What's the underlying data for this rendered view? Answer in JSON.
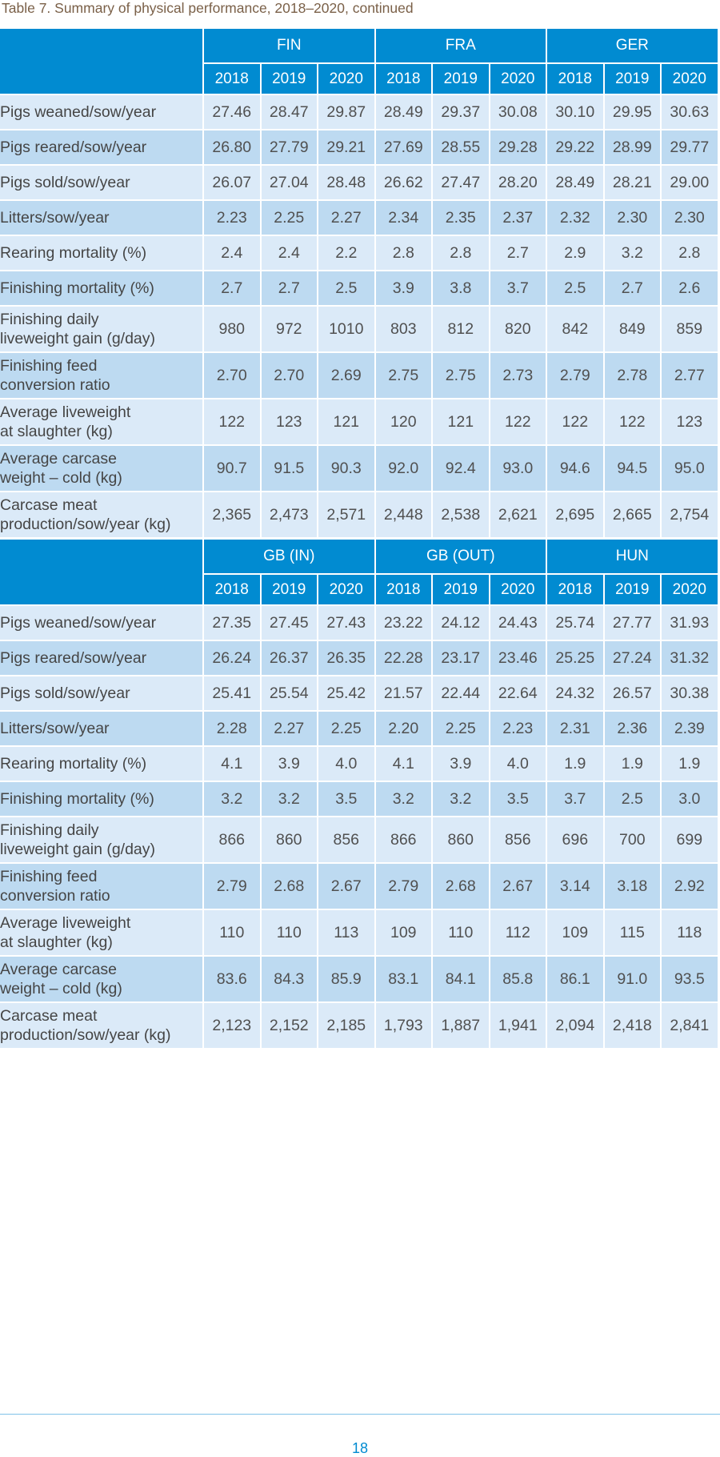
{
  "caption": "Table 7. Summary of physical performance, 2018–2020, continued",
  "page_number": "18",
  "colors": {
    "header_blue": "#018bd1",
    "row_light": "#dbeaf8",
    "row_dark": "#bddaf1",
    "caption_brown": "#7a6048"
  },
  "tables": [
    {
      "countries": [
        "FIN",
        "FRA",
        "GER"
      ],
      "years": [
        "2018",
        "2019",
        "2020",
        "2018",
        "2019",
        "2020",
        "2018",
        "2019",
        "2020"
      ],
      "rows": [
        {
          "label": "Pigs weaned/sow/year",
          "values": [
            "27.46",
            "28.47",
            "29.87",
            "28.49",
            "29.37",
            "30.08",
            "30.10",
            "29.95",
            "30.63"
          ]
        },
        {
          "label": "Pigs reared/sow/year",
          "values": [
            "26.80",
            "27.79",
            "29.21",
            "27.69",
            "28.55",
            "29.28",
            "29.22",
            "28.99",
            "29.77"
          ]
        },
        {
          "label": "Pigs sold/sow/year",
          "values": [
            "26.07",
            "27.04",
            "28.48",
            "26.62",
            "27.47",
            "28.20",
            "28.49",
            "28.21",
            "29.00"
          ]
        },
        {
          "label": "Litters/sow/year",
          "values": [
            "2.23",
            "2.25",
            "2.27",
            "2.34",
            "2.35",
            "2.37",
            "2.32",
            "2.30",
            "2.30"
          ]
        },
        {
          "label": "Rearing mortality (%)",
          "values": [
            "2.4",
            "2.4",
            "2.2",
            "2.8",
            "2.8",
            "2.7",
            "2.9",
            "3.2",
            "2.8"
          ]
        },
        {
          "label": "Finishing mortality (%)",
          "values": [
            "2.7",
            "2.7",
            "2.5",
            "3.9",
            "3.8",
            "3.7",
            "2.5",
            "2.7",
            "2.6"
          ]
        },
        {
          "label": "Finishing daily",
          "label2": "liveweight gain (g/day)",
          "values": [
            "980",
            "972",
            "1010",
            "803",
            "812",
            "820",
            "842",
            "849",
            "859"
          ]
        },
        {
          "label": "Finishing feed",
          "label2": "conversion ratio",
          "values": [
            "2.70",
            "2.70",
            "2.69",
            "2.75",
            "2.75",
            "2.73",
            "2.79",
            "2.78",
            "2.77"
          ]
        },
        {
          "label": "Average liveweight",
          "label2": "at slaughter (kg)",
          "values": [
            "122",
            "123",
            "121",
            "120",
            "121",
            "122",
            "122",
            "122",
            "123"
          ]
        },
        {
          "label": "Average carcase",
          "label2": "weight – cold (kg)",
          "values": [
            "90.7",
            "91.5",
            "90.3",
            "92.0",
            "92.4",
            "93.0",
            "94.6",
            "94.5",
            "95.0"
          ]
        },
        {
          "label": "Carcase meat",
          "label2": "production/sow/year (kg)",
          "values": [
            "2,365",
            "2,473",
            "2,571",
            "2,448",
            "2,538",
            "2,621",
            "2,695",
            "2,665",
            "2,754"
          ]
        }
      ]
    },
    {
      "countries": [
        "GB (IN)",
        "GB (OUT)",
        "HUN"
      ],
      "years": [
        "2018",
        "2019",
        "2020",
        "2018",
        "2019",
        "2020",
        "2018",
        "2019",
        "2020"
      ],
      "rows": [
        {
          "label": "Pigs weaned/sow/year",
          "values": [
            "27.35",
            "27.45",
            "27.43",
            "23.22",
            "24.12",
            "24.43",
            "25.74",
            "27.77",
            "31.93"
          ]
        },
        {
          "label": "Pigs reared/sow/year",
          "values": [
            "26.24",
            "26.37",
            "26.35",
            "22.28",
            "23.17",
            "23.46",
            "25.25",
            "27.24",
            "31.32"
          ]
        },
        {
          "label": "Pigs sold/sow/year",
          "values": [
            "25.41",
            "25.54",
            "25.42",
            "21.57",
            "22.44",
            "22.64",
            "24.32",
            "26.57",
            "30.38"
          ]
        },
        {
          "label": "Litters/sow/year",
          "values": [
            "2.28",
            "2.27",
            "2.25",
            "2.20",
            "2.25",
            "2.23",
            "2.31",
            "2.36",
            "2.39"
          ]
        },
        {
          "label": "Rearing mortality (%)",
          "values": [
            "4.1",
            "3.9",
            "4.0",
            "4.1",
            "3.9",
            "4.0",
            "1.9",
            "1.9",
            "1.9"
          ]
        },
        {
          "label": "Finishing mortality (%)",
          "values": [
            "3.2",
            "3.2",
            "3.5",
            "3.2",
            "3.2",
            "3.5",
            "3.7",
            "2.5",
            "3.0"
          ]
        },
        {
          "label": "Finishing daily",
          "label2": "liveweight gain (g/day)",
          "values": [
            "866",
            "860",
            "856",
            "866",
            "860",
            "856",
            "696",
            "700",
            "699"
          ]
        },
        {
          "label": "Finishing feed",
          "label2": "conversion ratio",
          "values": [
            "2.79",
            "2.68",
            "2.67",
            "2.79",
            "2.68",
            "2.67",
            "3.14",
            "3.18",
            "2.92"
          ]
        },
        {
          "label": "Average liveweight",
          "label2": "at slaughter (kg)",
          "values": [
            "110",
            "110",
            "113",
            "109",
            "110",
            "112",
            "109",
            "115",
            "118"
          ]
        },
        {
          "label": "Average carcase",
          "label2": "weight – cold (kg)",
          "values": [
            "83.6",
            "84.3",
            "85.9",
            "83.1",
            "84.1",
            "85.8",
            "86.1",
            "91.0",
            "93.5"
          ]
        },
        {
          "label": "Carcase meat",
          "label2": "production/sow/year (kg)",
          "values": [
            "2,123",
            "2,152",
            "2,185",
            "1,793",
            "1,887",
            "1,941",
            "2,094",
            "2,418",
            "2,841"
          ]
        }
      ]
    }
  ]
}
